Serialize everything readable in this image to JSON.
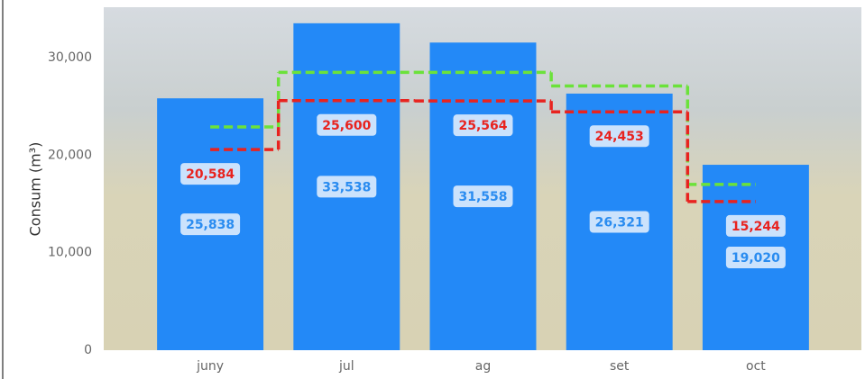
{
  "chart_data": {
    "type": "bar",
    "y_label": "Consum (m³)",
    "categories": [
      "juny",
      "jul",
      "ag",
      "set",
      "oct"
    ],
    "ylim": [
      0,
      35000
    ],
    "yticks": [
      0,
      {
        "value": 10000,
        "label": "10,000"
      },
      {
        "value": 20000,
        "label": "20,000"
      },
      {
        "value": 30000,
        "label": "30,000"
      }
    ],
    "series": [
      {
        "type": "bar",
        "color": "#2389f7",
        "label_color": "#2a8cf0",
        "values": [
          25838,
          33538,
          31558,
          26321,
          19020
        ],
        "value_labels": [
          "25,838",
          "33,538",
          "31,558",
          "26,321",
          "19,020"
        ]
      },
      {
        "type": "step",
        "color": "#6be23a",
        "values": [
          22900,
          28500,
          28500,
          27100,
          17000
        ]
      },
      {
        "type": "step",
        "color": "#e8231f",
        "label_color": "#e8231f",
        "values": [
          20584,
          25600,
          25564,
          24453,
          15244
        ],
        "value_labels": [
          "20,584",
          "25,600",
          "25,564",
          "24,453",
          "15,244"
        ]
      }
    ]
  }
}
